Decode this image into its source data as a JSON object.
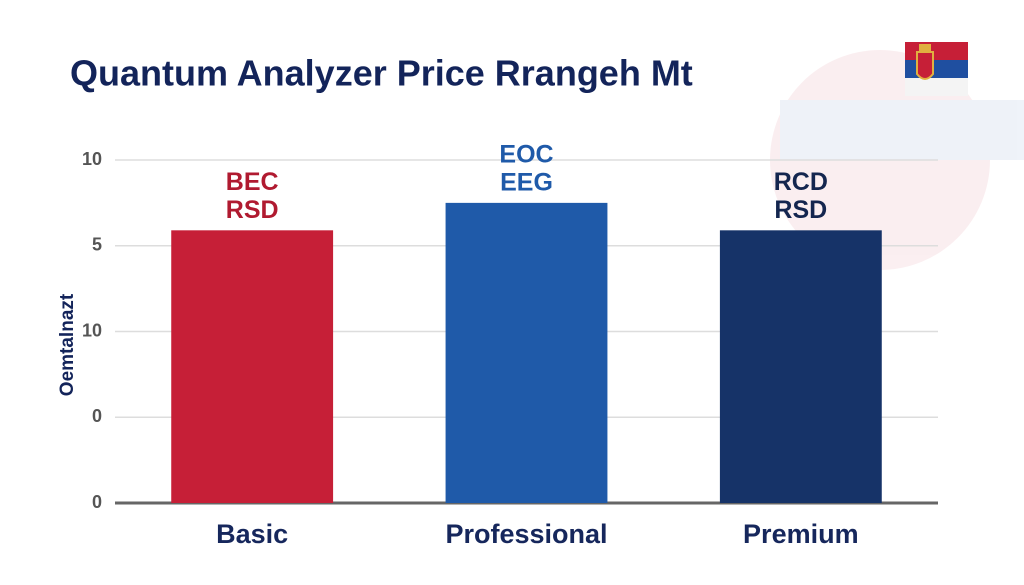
{
  "chart_data": {
    "type": "bar",
    "title": "Quantum Analyzer Price Rrangeh Mt",
    "y_label": "Oemtalnazt",
    "categories": [
      "Basic",
      "Professional",
      "Premium"
    ],
    "values": [
      15.9,
      17.5,
      15.9
    ],
    "colors": [
      "#c61f37",
      "#1f5aa9",
      "#163368"
    ],
    "bar_labels": [
      [
        "BEC",
        "RSD"
      ],
      [
        "EOC",
        "EEG"
      ],
      [
        "RCD",
        "RSD"
      ]
    ],
    "bar_label_colors": [
      "#b01a30",
      "#1f5aa9",
      "#14264f"
    ],
    "ylim": [
      0,
      20
    ],
    "yticks": [
      0,
      {
        "value": 5,
        "label": "0"
      },
      10,
      {
        "value": 15,
        "label": "5"
      },
      {
        "value": 20,
        "label": "10"
      }
    ],
    "grid": true
  }
}
